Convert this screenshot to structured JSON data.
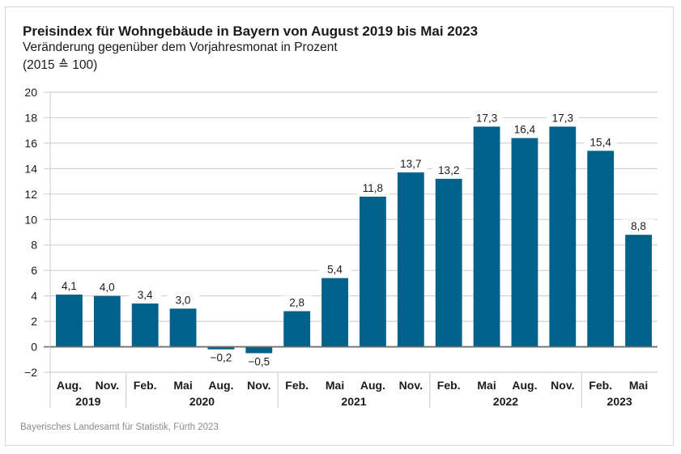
{
  "chart_data": {
    "type": "bar",
    "title": "Preisindex für Wohngebäude in Bayern von August 2019 bis Mai 2023",
    "subtitle": "Veränderung gegenüber dem Vorjahresmonat in Prozent",
    "subtitle2": "(2015 ≙ 100)",
    "source": "Bayerisches Landesamt für Statistik, Fürth 2023",
    "xlabel": "",
    "ylabel": "",
    "ylim": [
      -2,
      20
    ],
    "yticks": [
      -2,
      0,
      2,
      4,
      6,
      8,
      10,
      12,
      14,
      16,
      18,
      20
    ],
    "ytick_labels": [
      "−2",
      "0",
      "2",
      "4",
      "6",
      "8",
      "10",
      "12",
      "14",
      "16",
      "18",
      "20"
    ],
    "grid": true,
    "bar_color": "#00618a",
    "categories": [
      "Aug.",
      "Nov.",
      "Feb.",
      "Mai",
      "Aug.",
      "Nov.",
      "Feb.",
      "Mai",
      "Aug.",
      "Nov.",
      "Feb.",
      "Mai",
      "Aug.",
      "Nov.",
      "Feb.",
      "Mai"
    ],
    "values": [
      4.1,
      4.0,
      3.4,
      3.0,
      -0.2,
      -0.5,
      2.8,
      5.4,
      11.8,
      13.7,
      13.2,
      17.3,
      16.4,
      17.3,
      15.4,
      8.8
    ],
    "value_labels": [
      "4,1",
      "4,0",
      "3,4",
      "3,0",
      "−0,2",
      "−0,5",
      "2,8",
      "5,4",
      "11,8",
      "13,7",
      "13,2",
      "17,3",
      "16,4",
      "17,3",
      "15,4",
      "8,8"
    ],
    "year_groups": [
      {
        "label": "2019",
        "start": 0,
        "count": 2
      },
      {
        "label": "2020",
        "start": 2,
        "count": 4
      },
      {
        "label": "2021",
        "start": 6,
        "count": 4
      },
      {
        "label": "2022",
        "start": 10,
        "count": 4
      },
      {
        "label": "2023",
        "start": 14,
        "count": 2
      }
    ]
  }
}
